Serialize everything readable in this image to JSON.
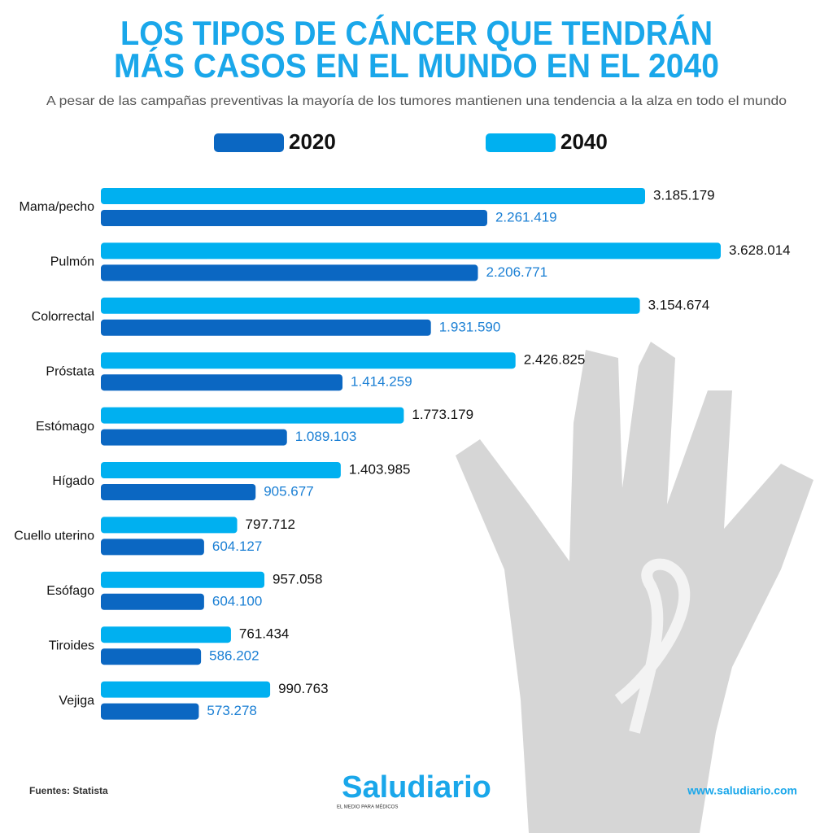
{
  "title_lines": [
    "LOS TIPOS DE CÁNCER QUE TENDRÁN",
    "MÁS CASOS EN EL MUNDO EN EL 2040"
  ],
  "subtitle": "A pesar de las campañas preventivas la mayoría de los tumores mantienen una tendencia a la alza en todo el mundo",
  "chart_data": {
    "type": "bar",
    "orientation": "horizontal",
    "categories": [
      "Mama/pecho",
      "Pulmón",
      "Colorrectal",
      "Próstata",
      "Estómago",
      "Hígado",
      "Cuello uterino",
      "Esófago",
      "Tiroides",
      "Vejiga"
    ],
    "series": [
      {
        "name": "2020",
        "color": "#0b67c2",
        "values": [
          2261419,
          2206771,
          1931590,
          1414259,
          1089103,
          905677,
          604127,
          604100,
          586202,
          573278
        ],
        "value_labels": [
          "2.261.419",
          "2.206.771",
          "1.931.590",
          "1.414.259",
          "1.089.103",
          "905.677",
          "604.127",
          "604.100",
          "586.202",
          "573.278"
        ]
      },
      {
        "name": "2040",
        "color": "#00b0f0",
        "values": [
          3185179,
          3628014,
          3154674,
          2426825,
          1773179,
          1403985,
          797712,
          957058,
          761434,
          990763
        ],
        "value_labels": [
          "3.185.179",
          "3.628.014",
          "3.154.674",
          "2.426.825",
          "1.773.179",
          "1.403.985",
          "797.712",
          "957.058",
          "761.434",
          "990.763"
        ]
      }
    ]
  },
  "footer": {
    "source": "Fuentes: Statista",
    "logo": "Saludiario",
    "tagline": "EL MEDIO PARA MÉDICOS",
    "website": "www.saludiario.com"
  }
}
